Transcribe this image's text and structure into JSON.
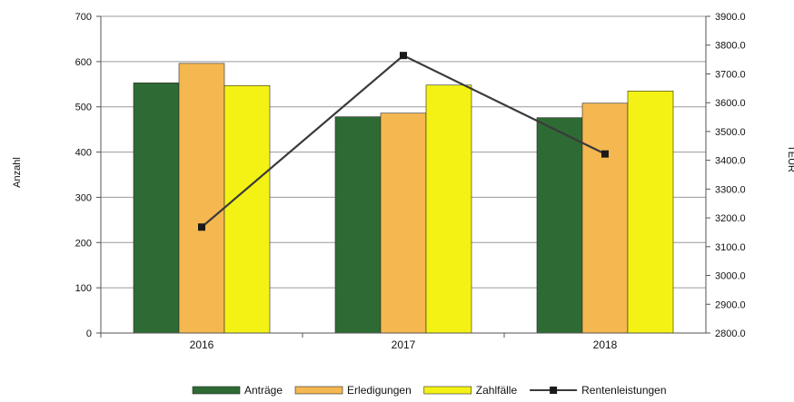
{
  "chart_data": {
    "type": "bar",
    "categories": [
      "2016",
      "2017",
      "2018"
    ],
    "series": [
      {
        "name": "Anträge",
        "values": [
          553,
          478,
          476
        ],
        "color": "#2e6b34",
        "axis": "left"
      },
      {
        "name": "Erledigungen",
        "values": [
          596,
          486,
          508
        ],
        "color": "#f5b750",
        "axis": "left"
      },
      {
        "name": "Zahlfälle",
        "values": [
          547,
          548,
          535
        ],
        "color": "#f4f215",
        "axis": "left"
      }
    ],
    "line_series": {
      "name": "Rentenleistungen",
      "type": "line",
      "values": [
        3168,
        3764,
        3422
      ],
      "color": "#3a3a3a",
      "axis": "right"
    },
    "ylabel": "Anzahl",
    "y2label": "TEUR",
    "ylim": [
      0,
      700
    ],
    "y2lim": [
      2800.0,
      3900.0
    ],
    "yticks": [
      "0",
      "100",
      "200",
      "300",
      "400",
      "500",
      "600",
      "700"
    ],
    "y2ticks": [
      "2800.0",
      "2900.0",
      "3000.0",
      "3100.0",
      "3200.0",
      "3300.0",
      "3400.0",
      "3500.0",
      "3600.0",
      "3700.0",
      "3800.0",
      "3900.0"
    ],
    "grid": "horizontal",
    "legend": "bottom"
  }
}
